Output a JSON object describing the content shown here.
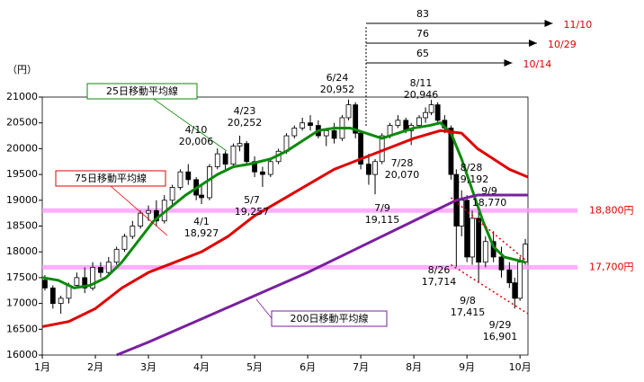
{
  "chart_data": {
    "type": "candlestick",
    "y_unit": "（円）",
    "xlim": [
      0,
      9.15
    ],
    "xticks": [
      {
        "value": 0,
        "label": "1月"
      },
      {
        "value": 1,
        "label": "2月"
      },
      {
        "value": 2,
        "label": "3月"
      },
      {
        "value": 3,
        "label": "4月"
      },
      {
        "value": 4,
        "label": "5月"
      },
      {
        "value": 5,
        "label": "6月"
      },
      {
        "value": 6,
        "label": "7月"
      },
      {
        "value": 7,
        "label": "8月"
      },
      {
        "value": 8,
        "label": "9月"
      },
      {
        "value": 9,
        "label": "10月"
      }
    ],
    "ylim": [
      16000,
      21000
    ],
    "yticks": [
      16000,
      16500,
      17000,
      17500,
      18000,
      18500,
      19000,
      19500,
      20000,
      20500,
      21000
    ],
    "candles": {
      "x": [
        0.05,
        0.2,
        0.35,
        0.5,
        0.65,
        0.8,
        0.95,
        1.1,
        1.25,
        1.4,
        1.55,
        1.7,
        1.85,
        2.0,
        2.15,
        2.3,
        2.45,
        2.6,
        2.75,
        2.9,
        3.0,
        3.15,
        3.3,
        3.45,
        3.6,
        3.72,
        3.85,
        4.0,
        4.15,
        4.3,
        4.45,
        4.6,
        4.75,
        4.9,
        5.05,
        5.2,
        5.35,
        5.5,
        5.65,
        5.77,
        5.9,
        6.0,
        6.15,
        6.27,
        6.4,
        6.55,
        6.7,
        6.85,
        6.95,
        7.1,
        7.22,
        7.33,
        7.45,
        7.58,
        7.7,
        7.8,
        7.9,
        8.0,
        8.1,
        8.22,
        8.35,
        8.5,
        8.65,
        8.8,
        8.9,
        9.0,
        9.1
      ],
      "open": [
        17450,
        17300,
        17000,
        17100,
        17350,
        17500,
        17300,
        17700,
        17600,
        17800,
        18050,
        18300,
        18500,
        18750,
        18800,
        18600,
        19000,
        19250,
        19550,
        19400,
        19100,
        19050,
        19650,
        19900,
        19700,
        20050,
        20100,
        19750,
        19550,
        19500,
        19750,
        19950,
        20250,
        20400,
        20500,
        20450,
        20250,
        20350,
        20200,
        20600,
        20850,
        20300,
        19700,
        19500,
        19750,
        20250,
        20450,
        20550,
        20350,
        20450,
        20600,
        20700,
        20850,
        20550,
        20400,
        19500,
        18500,
        19000,
        17900,
        18650,
        17800,
        18200,
        17900,
        17650,
        17400,
        17100,
        17800
      ],
      "high": [
        17550,
        17350,
        17150,
        17400,
        17600,
        17700,
        17800,
        17800,
        17900,
        18100,
        18350,
        18600,
        18800,
        18900,
        19000,
        19100,
        19300,
        19600,
        19700,
        19450,
        19300,
        19700,
        20006,
        19950,
        20100,
        20252,
        20150,
        19850,
        19650,
        19800,
        20000,
        20300,
        20450,
        20600,
        20650,
        20550,
        20400,
        20500,
        20650,
        20952,
        20900,
        20350,
        19900,
        19800,
        20300,
        20500,
        20650,
        20600,
        20500,
        20650,
        20800,
        20946,
        20900,
        20650,
        20450,
        19600,
        19192,
        19100,
        18800,
        18770,
        18300,
        18400,
        18100,
        17800,
        17500,
        17900,
        18250
      ],
      "low": [
        17250,
        16900,
        16800,
        17000,
        17300,
        17200,
        17250,
        17500,
        17550,
        17750,
        18000,
        18250,
        18450,
        18600,
        18500,
        18550,
        18900,
        19200,
        19300,
        19000,
        18927,
        19000,
        19600,
        19600,
        19650,
        19950,
        19700,
        19450,
        19257,
        19450,
        19700,
        19900,
        20200,
        20350,
        20350,
        20200,
        20050,
        20100,
        20150,
        20550,
        20200,
        19600,
        19300,
        19115,
        19700,
        20200,
        20400,
        20300,
        20070,
        20400,
        20500,
        20650,
        20500,
        20300,
        19400,
        17714,
        18300,
        17800,
        17750,
        17415,
        17700,
        17800,
        17500,
        17300,
        16901,
        17050,
        17750
      ],
      "close": [
        17300,
        17000,
        17100,
        17350,
        17500,
        17300,
        17700,
        17600,
        17800,
        18050,
        18300,
        18500,
        18750,
        18800,
        18600,
        19000,
        19250,
        19550,
        19400,
        19100,
        19050,
        19650,
        19900,
        19700,
        20050,
        20100,
        19750,
        19550,
        19500,
        19750,
        19950,
        20250,
        20400,
        20500,
        20450,
        20250,
        20350,
        20200,
        20600,
        20850,
        20300,
        19700,
        19500,
        19750,
        20250,
        20450,
        20550,
        20350,
        20450,
        20600,
        20700,
        20850,
        20550,
        20400,
        19500,
        18500,
        19000,
        17900,
        18650,
        17800,
        18200,
        17900,
        17650,
        17400,
        17100,
        17800,
        18150
      ]
    },
    "series": [
      {
        "name": "25日移動平均線",
        "color": "#0a8a0a",
        "x": [
          0,
          0.3,
          0.6,
          0.9,
          1.2,
          1.5,
          1.8,
          2.1,
          2.4,
          2.7,
          3.0,
          3.3,
          3.6,
          3.9,
          4.3,
          4.6,
          4.9,
          5.2,
          5.5,
          5.8,
          6.1,
          6.4,
          6.7,
          7.0,
          7.3,
          7.5,
          7.7,
          7.9,
          8.1,
          8.3,
          8.5,
          8.7,
          8.9,
          9.1
        ],
        "values": [
          17500,
          17450,
          17300,
          17350,
          17500,
          17800,
          18200,
          18600,
          18850,
          19100,
          19300,
          19500,
          19650,
          19700,
          19800,
          19950,
          20150,
          20350,
          20400,
          20400,
          20300,
          20200,
          20300,
          20400,
          20450,
          20500,
          20300,
          19800,
          19200,
          18600,
          18100,
          17900,
          17850,
          17800
        ]
      },
      {
        "name": "75日移動平均線",
        "color": "#e00000",
        "x": [
          0,
          0.5,
          1.0,
          1.5,
          2.0,
          2.5,
          3.0,
          3.5,
          4.0,
          4.5,
          5.0,
          5.5,
          6.0,
          6.5,
          7.0,
          7.5,
          7.9,
          8.2,
          8.5,
          8.8,
          9.15
        ],
        "values": [
          16550,
          16650,
          16900,
          17300,
          17600,
          17800,
          18000,
          18300,
          18700,
          19000,
          19300,
          19600,
          19800,
          20000,
          20200,
          20350,
          20300,
          20000,
          19800,
          19600,
          19450
        ]
      },
      {
        "name": "200日移動平均線",
        "color": "#7a1fa0",
        "x": [
          1.4,
          2,
          3,
          4,
          5,
          6,
          7,
          7.8,
          8.2,
          9.15
        ],
        "values": [
          16000,
          16250,
          16700,
          17150,
          17600,
          18100,
          18600,
          19000,
          19100,
          19100
        ]
      }
    ],
    "bands": [
      {
        "value": 18800,
        "label": "18,800円"
      },
      {
        "value": 17700,
        "label": "17,700円"
      }
    ],
    "trend_lines": [
      {
        "x": [
          7.7,
          9.15
        ],
        "values": [
          19050,
          17800
        ]
      },
      {
        "x": [
          7.7,
          9.15
        ],
        "values": [
          17750,
          16800
        ]
      }
    ],
    "period_arrows": [
      {
        "days": 83,
        "end": "11/10"
      },
      {
        "days": 76,
        "end": "10/29"
      },
      {
        "days": 65,
        "end": "10/14"
      }
    ],
    "annotations": [
      [
        "6/24",
        "20,952"
      ],
      [
        "8/11",
        "20,946"
      ],
      [
        "4/23",
        "20,252"
      ],
      [
        "4/10",
        "20,006"
      ],
      [
        "7/28",
        "20,070"
      ],
      [
        "5/7",
        "19,257"
      ],
      [
        "4/1",
        "18,927"
      ],
      [
        "7/9",
        "19,115"
      ],
      [
        "8/28",
        "19,192"
      ],
      [
        "9/9",
        "18,770"
      ],
      [
        "8/26",
        "17,714"
      ],
      [
        "9/8",
        "17,415"
      ],
      [
        "9/29",
        "16,901"
      ]
    ]
  }
}
